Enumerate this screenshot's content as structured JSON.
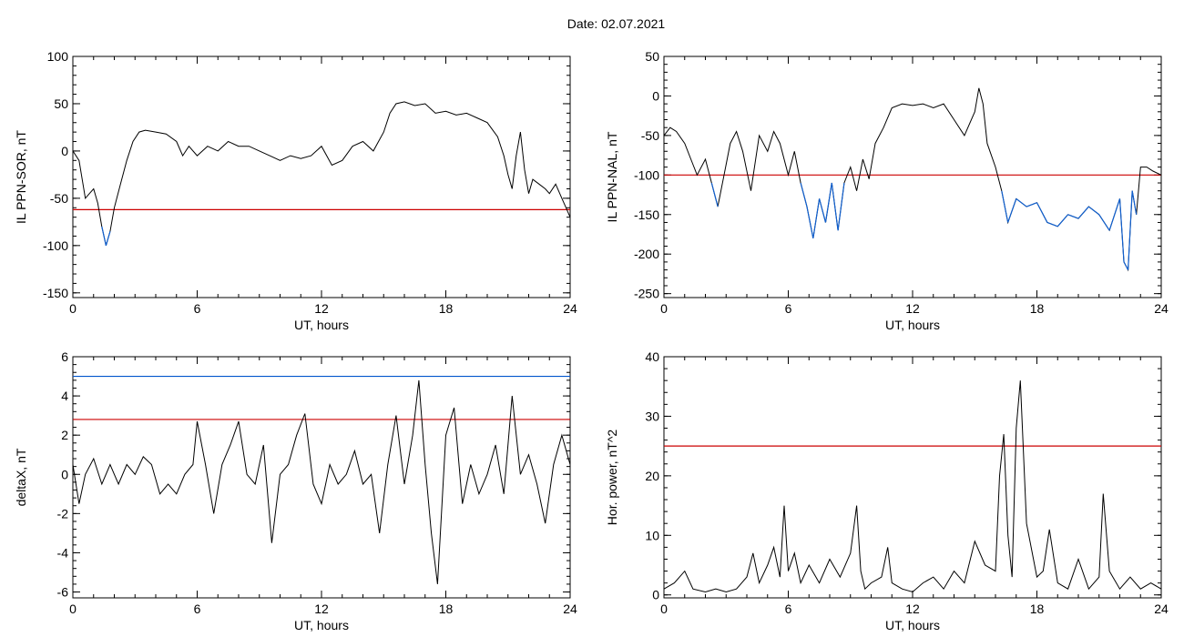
{
  "header": {
    "date_label": "Date:  02.07.2021"
  },
  "colors": {
    "trace": "#000000",
    "threshold_red": "#cc0000",
    "threshold_blue": "#0055cc",
    "highlight_blue": "#1060d0"
  },
  "chart_data": [
    {
      "type": "line",
      "ylabel": "IL PPN-SOR, nT",
      "xlabel": "UT, hours",
      "xlim": [
        0,
        24
      ],
      "ylim": [
        -155,
        100
      ],
      "xticks": [
        "0",
        "6",
        "12",
        "18",
        "24"
      ],
      "yticks": [
        "100",
        "50",
        "0",
        "-50",
        "-100",
        "-150"
      ],
      "threshold_lines": [
        {
          "color": "red",
          "value": -62
        }
      ],
      "series": [
        {
          "x": [
            0,
            0.3,
            0.6,
            0.8,
            1.0,
            1.2,
            1.4,
            1.6,
            1.8,
            2.0,
            2.3,
            2.6,
            2.9,
            3.2,
            3.5,
            4.0,
            4.5,
            5.0,
            5.3,
            5.6,
            6.0,
            6.5,
            7.0,
            7.5,
            8.0,
            8.5,
            9.0,
            9.5,
            10.0,
            10.5,
            11.0,
            11.5,
            12.0,
            12.5,
            13.0,
            13.5,
            14.0,
            14.5,
            15.0,
            15.3,
            15.6,
            16.0,
            16.5,
            17.0,
            17.5,
            18.0,
            18.5,
            19.0,
            19.5,
            20.0,
            20.5,
            20.8,
            21.0,
            21.2,
            21.4,
            21.6,
            21.8,
            22.0,
            22.2,
            22.5,
            22.8,
            23.0,
            23.3,
            23.6,
            23.8,
            24.0
          ],
          "y": [
            0,
            -10,
            -50,
            -45,
            -40,
            -55,
            -80,
            -100,
            -85,
            -60,
            -35,
            -10,
            10,
            20,
            22,
            20,
            18,
            10,
            -5,
            5,
            -5,
            5,
            0,
            10,
            5,
            5,
            0,
            -5,
            -10,
            -5,
            -8,
            -5,
            5,
            -15,
            -10,
            5,
            10,
            0,
            20,
            40,
            50,
            52,
            48,
            50,
            40,
            42,
            38,
            40,
            35,
            30,
            15,
            -5,
            -25,
            -40,
            -5,
            20,
            -20,
            -45,
            -30,
            -35,
            -40,
            -45,
            -35,
            -50,
            -60,
            -70
          ]
        }
      ]
    },
    {
      "type": "line",
      "ylabel": "IL PPN-NAL, nT",
      "xlabel": "UT, hours",
      "xlim": [
        0,
        24
      ],
      "ylim": [
        -255,
        50
      ],
      "xticks": [
        "0",
        "6",
        "12",
        "18",
        "24"
      ],
      "yticks": [
        "50",
        "0",
        "-50",
        "-100",
        "-150",
        "-200",
        "-250"
      ],
      "threshold_lines": [
        {
          "color": "red",
          "value": -100
        }
      ],
      "series": [
        {
          "x": [
            0,
            0.3,
            0.6,
            1.0,
            1.3,
            1.6,
            2.0,
            2.3,
            2.6,
            2.9,
            3.2,
            3.5,
            3.8,
            4.2,
            4.6,
            5.0,
            5.3,
            5.6,
            6.0,
            6.3,
            6.6,
            6.9,
            7.2,
            7.5,
            7.8,
            8.1,
            8.4,
            8.7,
            9.0,
            9.3,
            9.6,
            9.9,
            10.2,
            10.6,
            11.0,
            11.5,
            12.0,
            12.5,
            13.0,
            13.5,
            14.0,
            14.5,
            15.0,
            15.2,
            15.4,
            15.6,
            16.0,
            16.3,
            16.6,
            17.0,
            17.5,
            18.0,
            18.5,
            19.0,
            19.5,
            20.0,
            20.5,
            21.0,
            21.5,
            22.0,
            22.2,
            22.4,
            22.6,
            22.8,
            23.0,
            23.3,
            23.6,
            24.0
          ],
          "y": [
            -50,
            -40,
            -45,
            -60,
            -80,
            -100,
            -80,
            -110,
            -140,
            -100,
            -60,
            -45,
            -70,
            -120,
            -50,
            -70,
            -45,
            -60,
            -100,
            -70,
            -110,
            -140,
            -180,
            -130,
            -160,
            -110,
            -170,
            -110,
            -90,
            -120,
            -80,
            -105,
            -60,
            -40,
            -15,
            -10,
            -12,
            -10,
            -15,
            -10,
            -30,
            -50,
            -20,
            10,
            -10,
            -60,
            -90,
            -120,
            -160,
            -130,
            -140,
            -135,
            -160,
            -165,
            -150,
            -155,
            -140,
            -150,
            -170,
            -130,
            -210,
            -220,
            -120,
            -150,
            -90,
            -90,
            -95,
            -100
          ]
        }
      ]
    },
    {
      "type": "line",
      "ylabel": "deltaX, nT",
      "xlabel": "UT, hours",
      "xlim": [
        0,
        24
      ],
      "ylim": [
        -6.3,
        6
      ],
      "xticks": [
        "0",
        "6",
        "12",
        "18",
        "24"
      ],
      "yticks": [
        "6",
        "4",
        "2",
        "0",
        "-2",
        "-4",
        "-6"
      ],
      "threshold_lines": [
        {
          "color": "blue",
          "value": 5
        },
        {
          "color": "red",
          "value": 2.8
        }
      ],
      "series": [
        {
          "x": [
            0,
            0.3,
            0.6,
            1.0,
            1.4,
            1.8,
            2.2,
            2.6,
            3.0,
            3.4,
            3.8,
            4.2,
            4.6,
            5.0,
            5.4,
            5.8,
            6.0,
            6.4,
            6.8,
            7.2,
            7.6,
            8.0,
            8.4,
            8.8,
            9.2,
            9.6,
            10.0,
            10.4,
            10.8,
            11.2,
            11.6,
            12.0,
            12.4,
            12.8,
            13.2,
            13.6,
            14.0,
            14.4,
            14.8,
            15.2,
            15.6,
            16.0,
            16.4,
            16.7,
            17.0,
            17.3,
            17.6,
            18.0,
            18.4,
            18.8,
            19.2,
            19.6,
            20.0,
            20.4,
            20.8,
            21.2,
            21.6,
            22.0,
            22.4,
            22.8,
            23.2,
            23.6,
            24.0
          ],
          "y": [
            0.5,
            -1.5,
            0,
            0.8,
            -0.5,
            0.5,
            -0.5,
            0.5,
            0,
            0.9,
            0.5,
            -1,
            -0.5,
            -1,
            0,
            0.5,
            2.7,
            0.5,
            -2,
            0.5,
            1.5,
            2.7,
            0,
            -0.5,
            1.5,
            -3.5,
            0,
            0.5,
            2,
            3.1,
            -0.5,
            -1.5,
            0.5,
            -0.5,
            0,
            1.2,
            -0.5,
            0,
            -3,
            0.5,
            3,
            -0.5,
            2,
            4.8,
            0.5,
            -3,
            -5.6,
            2,
            3.4,
            -1.5,
            0.5,
            -1,
            0,
            1.5,
            -1,
            4,
            0,
            1,
            -0.5,
            -2.5,
            0.5,
            2,
            0.5
          ]
        }
      ]
    },
    {
      "type": "line",
      "ylabel": "Hor. power, nT^2",
      "xlabel": "UT, hours",
      "xlim": [
        0,
        24
      ],
      "ylim": [
        -0.5,
        40
      ],
      "xticks": [
        "0",
        "6",
        "12",
        "18",
        "24"
      ],
      "yticks": [
        "40",
        "30",
        "20",
        "10",
        "0"
      ],
      "threshold_lines": [
        {
          "color": "red",
          "value": 25
        }
      ],
      "series": [
        {
          "x": [
            0,
            0.5,
            1.0,
            1.4,
            2.0,
            2.5,
            3.0,
            3.5,
            4.0,
            4.3,
            4.6,
            5.0,
            5.3,
            5.6,
            5.8,
            6.0,
            6.3,
            6.6,
            7.0,
            7.5,
            8.0,
            8.5,
            9.0,
            9.3,
            9.5,
            9.7,
            10.0,
            10.5,
            10.8,
            11.0,
            11.5,
            12.0,
            12.5,
            13.0,
            13.5,
            14.0,
            14.5,
            15.0,
            15.5,
            16.0,
            16.2,
            16.4,
            16.6,
            16.8,
            17.0,
            17.2,
            17.5,
            18.0,
            18.3,
            18.6,
            19.0,
            19.5,
            20.0,
            20.5,
            21.0,
            21.2,
            21.5,
            22.0,
            22.5,
            23.0,
            23.5,
            24.0
          ],
          "y": [
            1,
            2,
            4,
            1,
            0.5,
            1,
            0.5,
            1,
            3,
            7,
            2,
            5,
            8,
            3,
            15,
            4,
            7,
            2,
            5,
            2,
            6,
            3,
            7,
            15,
            4,
            1,
            2,
            3,
            8,
            2,
            1,
            0.5,
            2,
            3,
            1,
            4,
            2,
            9,
            5,
            4,
            20,
            27,
            10,
            3,
            28,
            36,
            12,
            3,
            4,
            11,
            2,
            1,
            6,
            1,
            3,
            17,
            4,
            1,
            3,
            1,
            2,
            1
          ]
        }
      ]
    }
  ]
}
